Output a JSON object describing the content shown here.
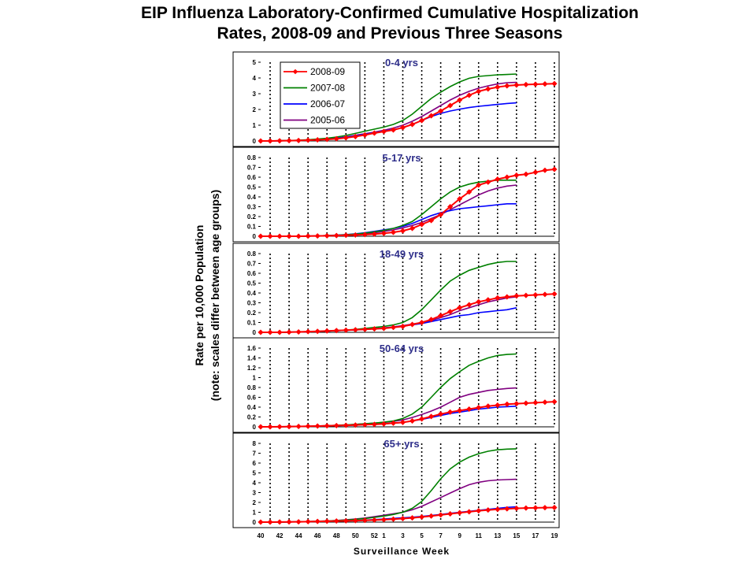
{
  "title_line1": "EIP Influenza Laboratory-Confirmed Cumulative Hospitalization",
  "title_line2": "Rates, 2008-09 and Previous Three Seasons",
  "chart_data": {
    "type": "line",
    "title": "EIP Influenza Laboratory-Confirmed Cumulative Hospitalization Rates, 2008-09 and Previous Three Seasons",
    "xlabel": "Surveillance Week",
    "ylabel_line1": "Rate per 10,000 Population",
    "ylabel_line2": "(note: scales differ between age groups)",
    "weeks": [
      "40",
      "41",
      "42",
      "43",
      "44",
      "45",
      "46",
      "47",
      "48",
      "49",
      "50",
      "51",
      "52",
      "1",
      "2",
      "3",
      "4",
      "5",
      "6",
      "7",
      "8",
      "9",
      "10",
      "11",
      "12",
      "13",
      "14",
      "15",
      "16",
      "17",
      "18",
      "19"
    ],
    "x_tick_labels": [
      "40",
      "42",
      "44",
      "46",
      "48",
      "50",
      "52",
      "1",
      "3",
      "5",
      "7",
      "9",
      "11",
      "13",
      "15",
      "17",
      "19"
    ],
    "legend": [
      {
        "name": "2008-09",
        "color": "#ff0000",
        "marker": "diamond"
      },
      {
        "name": "2007-08",
        "color": "#008000",
        "marker": "none"
      },
      {
        "name": "2006-07",
        "color": "#0000ff",
        "marker": "none"
      },
      {
        "name": "2005-06",
        "color": "#800080",
        "marker": "none"
      }
    ],
    "panels": [
      {
        "label": "0-4 yrs",
        "ylim": [
          0,
          5
        ],
        "yticks": [
          0,
          1,
          2,
          3,
          4,
          5
        ],
        "series": [
          {
            "name": "2008-09",
            "values": [
              0,
              0,
              0.01,
              0.02,
              0.03,
              0.05,
              0.07,
              0.1,
              0.14,
              0.2,
              0.28,
              0.38,
              0.5,
              0.6,
              0.7,
              0.85,
              1.05,
              1.3,
              1.6,
              1.9,
              2.25,
              2.6,
              2.9,
              3.15,
              3.3,
              3.42,
              3.5,
              3.55,
              3.58,
              3.6,
              3.62,
              3.64
            ]
          },
          {
            "name": "2007-08",
            "values": [
              0,
              0,
              0.02,
              0.03,
              0.05,
              0.08,
              0.12,
              0.17,
              0.25,
              0.35,
              0.48,
              0.62,
              0.75,
              0.88,
              1.05,
              1.3,
              1.7,
              2.2,
              2.7,
              3.1,
              3.45,
              3.75,
              3.98,
              4.1,
              4.15,
              4.2,
              4.22,
              4.25
            ]
          },
          {
            "name": "2006-07",
            "values": [
              0,
              0,
              0.01,
              0.02,
              0.03,
              0.05,
              0.08,
              0.12,
              0.17,
              0.24,
              0.32,
              0.42,
              0.52,
              0.62,
              0.72,
              0.85,
              1.05,
              1.3,
              1.55,
              1.75,
              1.9,
              2.02,
              2.12,
              2.2,
              2.26,
              2.32,
              2.38,
              2.42
            ]
          },
          {
            "name": "2005-06",
            "values": [
              0,
              0,
              0.01,
              0.02,
              0.03,
              0.05,
              0.08,
              0.12,
              0.18,
              0.26,
              0.36,
              0.46,
              0.56,
              0.68,
              0.82,
              1.0,
              1.25,
              1.55,
              1.9,
              2.25,
              2.6,
              2.9,
              3.15,
              3.35,
              3.5,
              3.62,
              3.7,
              3.72
            ]
          }
        ]
      },
      {
        "label": "5-17 yrs",
        "ylim": [
          0,
          0.8
        ],
        "yticks": [
          0,
          0.1,
          0.2,
          0.3,
          0.4,
          0.5,
          0.6,
          0.7,
          0.8
        ],
        "series": [
          {
            "name": "2008-09",
            "values": [
              0,
              0,
              0,
              0,
              0,
              0.002,
              0.003,
              0.005,
              0.007,
              0.01,
              0.013,
              0.017,
              0.022,
              0.03,
              0.04,
              0.055,
              0.08,
              0.12,
              0.16,
              0.22,
              0.3,
              0.38,
              0.45,
              0.52,
              0.55,
              0.58,
              0.6,
              0.62,
              0.63,
              0.65,
              0.67,
              0.68
            ]
          },
          {
            "name": "2007-08",
            "values": [
              0,
              0,
              0,
              0,
              0,
              0.002,
              0.004,
              0.007,
              0.01,
              0.015,
              0.022,
              0.032,
              0.045,
              0.06,
              0.08,
              0.11,
              0.15,
              0.22,
              0.3,
              0.38,
              0.45,
              0.5,
              0.53,
              0.55,
              0.56,
              0.57,
              0.57,
              0.57
            ]
          },
          {
            "name": "2006-07",
            "values": [
              0,
              0,
              0,
              0,
              0,
              0.002,
              0.004,
              0.007,
              0.011,
              0.017,
              0.025,
              0.036,
              0.05,
              0.065,
              0.08,
              0.1,
              0.13,
              0.17,
              0.21,
              0.24,
              0.26,
              0.28,
              0.29,
              0.3,
              0.31,
              0.32,
              0.33,
              0.33
            ]
          },
          {
            "name": "2005-06",
            "values": [
              0,
              0,
              0,
              0,
              0,
              0.002,
              0.004,
              0.006,
              0.009,
              0.013,
              0.018,
              0.025,
              0.035,
              0.05,
              0.065,
              0.085,
              0.11,
              0.14,
              0.18,
              0.22,
              0.27,
              0.32,
              0.37,
              0.42,
              0.46,
              0.49,
              0.51,
              0.52
            ]
          }
        ]
      },
      {
        "label": "18-49 yrs",
        "ylim": [
          0,
          0.8
        ],
        "yticks": [
          0,
          0.1,
          0.2,
          0.3,
          0.4,
          0.5,
          0.6,
          0.7,
          0.8
        ],
        "series": [
          {
            "name": "2008-09",
            "values": [
              0,
              0,
              0,
              0.002,
              0.004,
              0.007,
              0.01,
              0.014,
              0.018,
              0.022,
              0.026,
              0.03,
              0.035,
              0.04,
              0.05,
              0.06,
              0.08,
              0.1,
              0.13,
              0.17,
              0.21,
              0.25,
              0.28,
              0.31,
              0.33,
              0.35,
              0.36,
              0.37,
              0.375,
              0.38,
              0.385,
              0.39
            ]
          },
          {
            "name": "2007-08",
            "values": [
              0,
              0,
              0,
              0.002,
              0.004,
              0.007,
              0.01,
              0.014,
              0.018,
              0.023,
              0.03,
              0.04,
              0.05,
              0.06,
              0.075,
              0.1,
              0.15,
              0.23,
              0.33,
              0.43,
              0.52,
              0.58,
              0.63,
              0.66,
              0.69,
              0.71,
              0.72,
              0.72
            ]
          },
          {
            "name": "2006-07",
            "values": [
              0,
              0,
              0,
              0.002,
              0.004,
              0.006,
              0.009,
              0.012,
              0.016,
              0.02,
              0.025,
              0.03,
              0.036,
              0.043,
              0.052,
              0.063,
              0.076,
              0.09,
              0.11,
              0.13,
              0.15,
              0.17,
              0.18,
              0.2,
              0.21,
              0.22,
              0.23,
              0.25
            ]
          },
          {
            "name": "2005-06",
            "values": [
              0,
              0,
              0,
              0.002,
              0.004,
              0.006,
              0.009,
              0.012,
              0.016,
              0.02,
              0.025,
              0.031,
              0.038,
              0.046,
              0.056,
              0.068,
              0.083,
              0.1,
              0.12,
              0.15,
              0.18,
              0.22,
              0.25,
              0.28,
              0.31,
              0.33,
              0.35,
              0.36
            ]
          }
        ]
      },
      {
        "label": "50-64 yrs",
        "ylim": [
          0,
          1.6
        ],
        "yticks": [
          0,
          0.2,
          0.4,
          0.6,
          0.8,
          1,
          1.2,
          1.4,
          1.6
        ],
        "series": [
          {
            "name": "2008-09",
            "values": [
              0,
              0,
              0.002,
              0.005,
              0.008,
              0.012,
              0.016,
              0.02,
              0.025,
              0.03,
              0.036,
              0.043,
              0.05,
              0.06,
              0.075,
              0.09,
              0.12,
              0.16,
              0.21,
              0.26,
              0.3,
              0.33,
              0.36,
              0.39,
              0.42,
              0.44,
              0.46,
              0.47,
              0.48,
              0.49,
              0.5,
              0.51
            ]
          },
          {
            "name": "2007-08",
            "values": [
              0,
              0,
              0.002,
              0.005,
              0.008,
              0.012,
              0.017,
              0.023,
              0.03,
              0.04,
              0.05,
              0.062,
              0.075,
              0.095,
              0.12,
              0.17,
              0.26,
              0.4,
              0.6,
              0.8,
              0.98,
              1.12,
              1.25,
              1.33,
              1.4,
              1.45,
              1.47,
              1.48
            ]
          },
          {
            "name": "2006-07",
            "values": [
              0,
              0,
              0.002,
              0.005,
              0.008,
              0.012,
              0.016,
              0.02,
              0.025,
              0.03,
              0.036,
              0.043,
              0.05,
              0.06,
              0.075,
              0.09,
              0.12,
              0.15,
              0.19,
              0.23,
              0.27,
              0.3,
              0.33,
              0.36,
              0.38,
              0.4,
              0.41,
              0.42
            ]
          },
          {
            "name": "2005-06",
            "values": [
              0,
              0,
              0.002,
              0.005,
              0.008,
              0.012,
              0.017,
              0.023,
              0.03,
              0.04,
              0.05,
              0.062,
              0.075,
              0.09,
              0.11,
              0.14,
              0.19,
              0.25,
              0.32,
              0.4,
              0.5,
              0.6,
              0.66,
              0.7,
              0.74,
              0.76,
              0.78,
              0.79
            ]
          }
        ]
      },
      {
        "label": "65+ yrs",
        "ylim": [
          0,
          8
        ],
        "yticks": [
          0,
          1,
          2,
          3,
          4,
          5,
          6,
          7,
          8
        ],
        "series": [
          {
            "name": "2008-09",
            "values": [
              0,
              0,
              0.01,
              0.02,
              0.03,
              0.05,
              0.07,
              0.09,
              0.11,
              0.13,
              0.15,
              0.18,
              0.21,
              0.25,
              0.3,
              0.36,
              0.43,
              0.52,
              0.62,
              0.73,
              0.84,
              0.95,
              1.05,
              1.15,
              1.23,
              1.3,
              1.35,
              1.4,
              1.43,
              1.45,
              1.47,
              1.48
            ]
          },
          {
            "name": "2007-08",
            "values": [
              0,
              0,
              0.01,
              0.02,
              0.04,
              0.06,
              0.09,
              0.12,
              0.16,
              0.21,
              0.28,
              0.37,
              0.48,
              0.62,
              0.78,
              1.0,
              1.4,
              2.1,
              3.2,
              4.4,
              5.4,
              6.1,
              6.6,
              6.95,
              7.2,
              7.35,
              7.42,
              7.45
            ]
          },
          {
            "name": "2006-07",
            "values": [
              0,
              0,
              0.01,
              0.02,
              0.03,
              0.05,
              0.07,
              0.09,
              0.11,
              0.14,
              0.17,
              0.21,
              0.26,
              0.32,
              0.38,
              0.44,
              0.5,
              0.58,
              0.68,
              0.78,
              0.9,
              1.0,
              1.1,
              1.2,
              1.3,
              1.4,
              1.5,
              1.55
            ]
          },
          {
            "name": "2005-06",
            "values": [
              0,
              0,
              0.01,
              0.02,
              0.04,
              0.06,
              0.09,
              0.12,
              0.17,
              0.23,
              0.32,
              0.42,
              0.55,
              0.7,
              0.85,
              1.0,
              1.25,
              1.6,
              2.05,
              2.5,
              2.95,
              3.4,
              3.8,
              4.05,
              4.2,
              4.28,
              4.32,
              4.35
            ]
          }
        ]
      }
    ]
  }
}
